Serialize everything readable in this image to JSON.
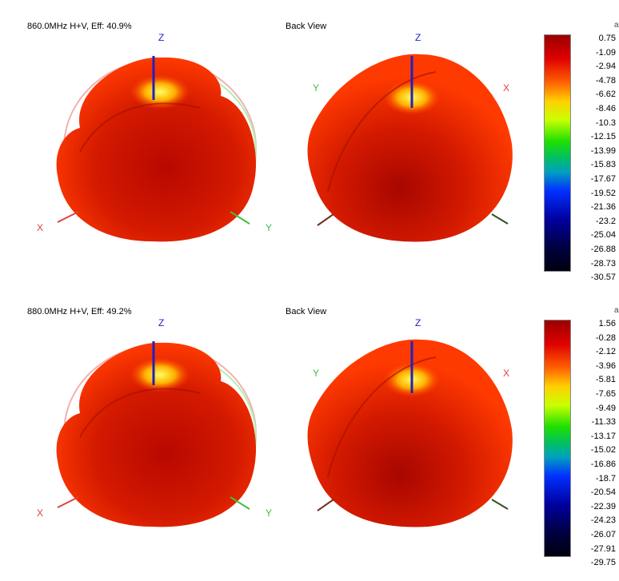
{
  "rows": [
    {
      "title": "860.0MHz H+V, Eff: 40.9%",
      "back_title": "Back View",
      "scale": [
        "0.75",
        "-1.09",
        "-2.94",
        "-4.78",
        "-6.62",
        "-8.46",
        "-10.3",
        "-12.15",
        "-13.99",
        "-15.83",
        "-17.67",
        "-19.52",
        "-21.36",
        "-23.2",
        "-25.04",
        "-26.88",
        "-28.73",
        "-30.57"
      ]
    },
    {
      "title": "880.0MHz H+V, Eff: 49.2%",
      "back_title": "Back View",
      "scale": [
        "1.56",
        "-0.28",
        "-2.12",
        "-3.96",
        "-5.81",
        "-7.65",
        "-9.49",
        "-11.33",
        "-13.17",
        "-15.02",
        "-16.86",
        "-18.7",
        "-20.54",
        "-22.39",
        "-24.23",
        "-26.07",
        "-27.91",
        "-29.75"
      ]
    }
  ],
  "axis_labels": {
    "x": "X",
    "y": "Y",
    "z": "Z"
  },
  "corner_mark": "a",
  "colors": {
    "x_axis": "#e04040",
    "y_axis": "#40c040",
    "z_axis": "#2020c0"
  }
}
